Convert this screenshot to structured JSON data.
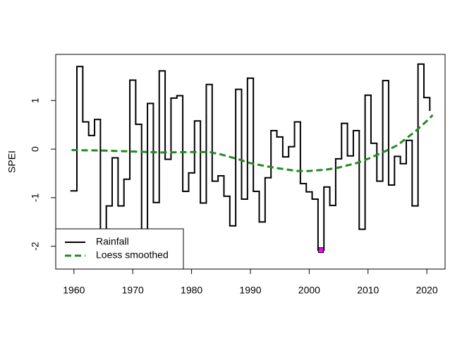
{
  "chart_data": {
    "type": "line",
    "y_label": "SPEI",
    "xlim": [
      1956.9,
      2023.1
    ],
    "ylim": [
      -2.47,
      1.95
    ],
    "xticks": [
      1960,
      1970,
      1980,
      1990,
      2000,
      2010,
      2020
    ],
    "yticks": [
      -2,
      -1,
      0,
      1
    ],
    "legend": "bottom-left",
    "series": [
      {
        "name": "Rainfall",
        "color": "#000000",
        "style": "step",
        "x": [
          1960,
          1961,
          1962,
          1963,
          1964,
          1965,
          1966,
          1967,
          1968,
          1969,
          1970,
          1971,
          1972,
          1973,
          1974,
          1975,
          1976,
          1977,
          1978,
          1979,
          1980,
          1981,
          1982,
          1983,
          1984,
          1985,
          1986,
          1987,
          1988,
          1989,
          1990,
          1991,
          1992,
          1993,
          1994,
          1995,
          1996,
          1997,
          1998,
          1999,
          2000,
          2001,
          2002,
          2003,
          2004,
          2005,
          2006,
          2007,
          2008,
          2009,
          2010,
          2011,
          2012,
          2013,
          2014,
          2015,
          2016,
          2017,
          2018,
          2019,
          2020,
          2021
        ],
        "values": [
          -0.86,
          1.7,
          0.56,
          0.28,
          0.61,
          -1.65,
          -1.17,
          -0.18,
          -1.17,
          -0.62,
          1.42,
          0.51,
          -1.75,
          0.94,
          -1.1,
          1.61,
          -0.21,
          1.05,
          1.1,
          -0.87,
          -0.49,
          0.58,
          -1.11,
          1.33,
          -0.66,
          -0.55,
          -0.97,
          -1.58,
          1.23,
          -1.03,
          1.46,
          -0.87,
          -1.5,
          -0.59,
          0.38,
          0.25,
          -0.16,
          0.05,
          0.56,
          -0.71,
          -0.88,
          -1.03,
          -2.08,
          -0.78,
          -1.16,
          -0.2,
          0.53,
          -0.14,
          0.38,
          -1.65,
          1.11,
          0.12,
          -0.66,
          1.41,
          -0.74,
          -0.15,
          -0.3,
          0.18,
          -1.17,
          1.75,
          1.06,
          0.8
        ]
      },
      {
        "name": "Loess smoothed",
        "color": "#228b22",
        "style": "dashed",
        "x": [
          1959.6,
          1965,
          1970,
          1975,
          1980,
          1983,
          1985,
          1988,
          1990,
          1993,
          1995,
          1998,
          2000,
          2003,
          2005,
          2008,
          2010,
          2013,
          2015,
          2018,
          2020,
          2021
        ],
        "values": [
          -0.02,
          -0.03,
          -0.05,
          -0.07,
          -0.06,
          -0.06,
          -0.11,
          -0.21,
          -0.29,
          -0.36,
          -0.4,
          -0.45,
          -0.45,
          -0.42,
          -0.38,
          -0.29,
          -0.2,
          -0.04,
          0.08,
          0.36,
          0.58,
          0.7
        ]
      }
    ],
    "highlight": {
      "x": 2002,
      "value": -2.08,
      "color": "#ff00ff"
    }
  }
}
